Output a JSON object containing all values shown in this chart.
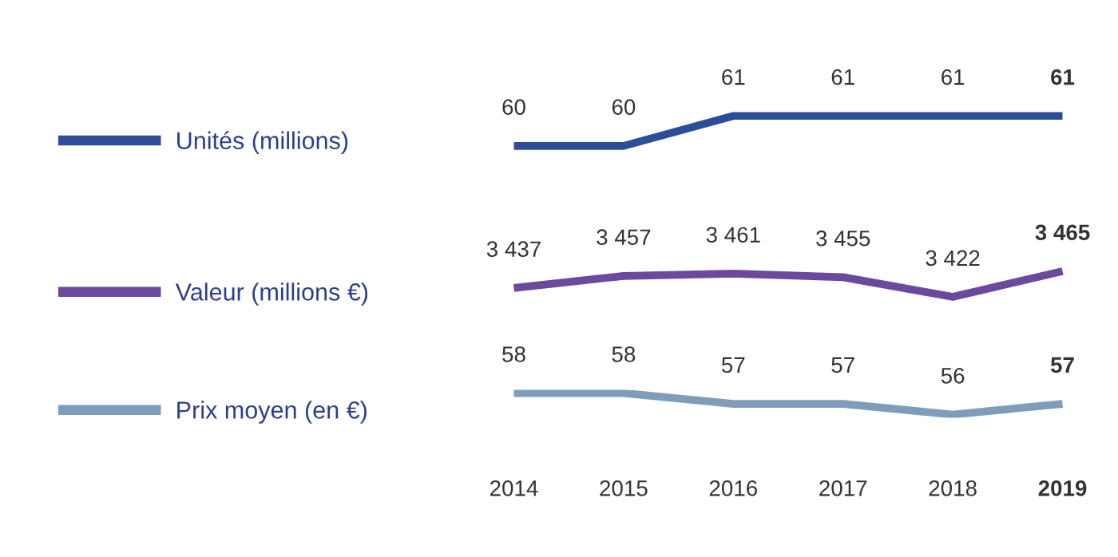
{
  "chart_data": [
    {
      "type": "line",
      "categories": [
        "2014",
        "2015",
        "2016",
        "2017",
        "2018",
        "2019"
      ],
      "data_labels": true,
      "legend": "left",
      "tick_labels": false,
      "series": [
        {
          "name": "Unités (millions)",
          "color": "#2d4d9b",
          "values": [
            60,
            60,
            61,
            61,
            61,
            61
          ],
          "value_labels": [
            "60",
            "60",
            "61",
            "61",
            "61",
            "61"
          ]
        }
      ]
    },
    {
      "type": "line",
      "categories": [
        "2014",
        "2015",
        "2016",
        "2017",
        "2018",
        "2019"
      ],
      "data_labels": true,
      "legend": "left",
      "tick_labels": false,
      "series": [
        {
          "name": "Valeur (millions €)",
          "color": "#6b4a9e",
          "values": [
            3437,
            3457,
            3461,
            3455,
            3422,
            3465
          ],
          "value_labels": [
            "3 437",
            "3 457",
            "3 461",
            "3 455",
            "3 422",
            "3 465"
          ]
        }
      ]
    },
    {
      "type": "line",
      "categories": [
        "2014",
        "2015",
        "2016",
        "2017",
        "2018",
        "2019"
      ],
      "data_labels": true,
      "legend": "left",
      "tick_labels": "x",
      "series": [
        {
          "name": "Prix moyen (en €)",
          "color": "#7f9dbb",
          "values": [
            58,
            58,
            57,
            57,
            56,
            57
          ],
          "value_labels": [
            "58",
            "58",
            "57",
            "57",
            "56",
            "57"
          ]
        }
      ]
    }
  ]
}
